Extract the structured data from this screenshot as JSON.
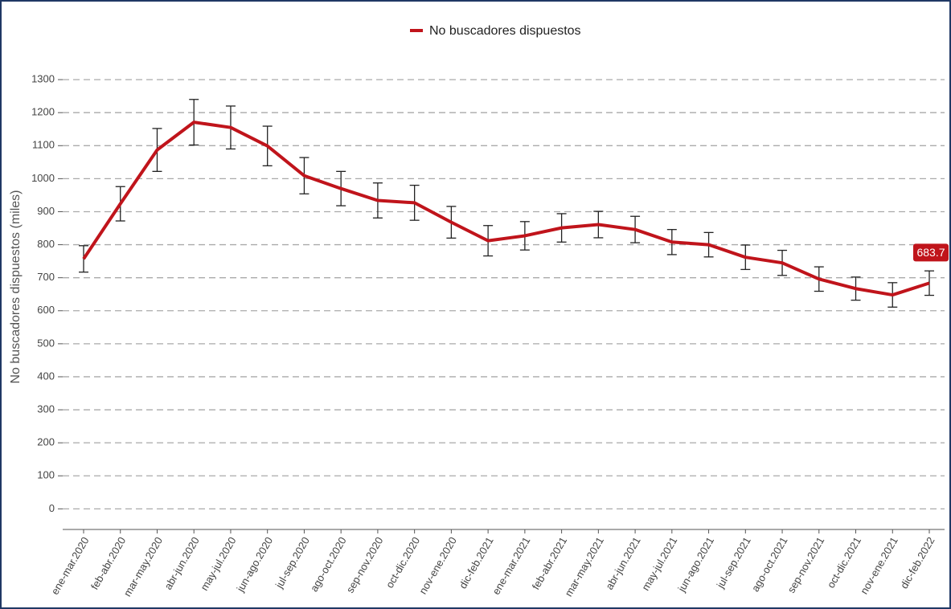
{
  "chart_data": {
    "type": "line",
    "y_label": "No buscadores dispuestos (miles)",
    "categories": [
      "ene-mar.2020",
      "feb-abr.2020",
      "mar-may.2020",
      "abr-jun.2020",
      "may-jul.2020",
      "jun-ago.2020",
      "jul-sep.2020",
      "ago-oct.2020",
      "sep-nov.2020",
      "oct-dic.2020",
      "nov-ene.2020",
      "dic-feb.2021",
      "ene-mar.2021",
      "feb-abr.2021",
      "mar-may.2021",
      "abr-jun.2021",
      "may-jul.2021",
      "jun-ago.2021",
      "jul-sep.2021",
      "ago-oct.2021",
      "sep-nov.2021",
      "oct-dic.2021",
      "nov-ene.2021",
      "dic-feb.2022"
    ],
    "series": [
      {
        "name": "No buscadores dispuestos",
        "color": "#c0141b",
        "values": [
          757,
          924,
          1087,
          1171,
          1155,
          1099,
          1009,
          970,
          934,
          927,
          868,
          812,
          827,
          851,
          861,
          846,
          808,
          800,
          762,
          745,
          696,
          667,
          648,
          683.7
        ],
        "errors": [
          40,
          52,
          65,
          69,
          65,
          60,
          55,
          52,
          53,
          53,
          48,
          46,
          43,
          43,
          40,
          40,
          38,
          37,
          37,
          38,
          37,
          35,
          37,
          37
        ]
      }
    ],
    "ylim": [
      -60,
      1400
    ],
    "yticks": [
      0,
      100,
      200,
      300,
      400,
      500,
      600,
      700,
      800,
      900,
      1000,
      1100,
      1200,
      1300
    ],
    "grid": true,
    "legend": "top"
  }
}
